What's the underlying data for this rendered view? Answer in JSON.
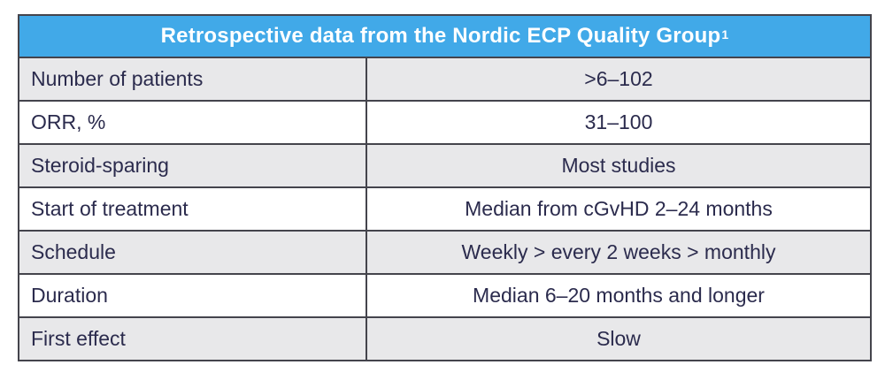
{
  "table": {
    "title": "Retrospective data from the Nordic ECP Quality Group",
    "title_superscript": "1",
    "colors": {
      "header_bg": "#41a9e8",
      "header_text": "#ffffff",
      "row_shaded_bg": "#e8e8ea",
      "row_plain_bg": "#ffffff",
      "border": "#44444c",
      "body_text": "#2b2b4d"
    },
    "rows": [
      {
        "label": "Number of patients",
        "value": ">6–102"
      },
      {
        "label": "ORR, %",
        "value": "31–100"
      },
      {
        "label": "Steroid-sparing",
        "value": "Most studies"
      },
      {
        "label": "Start of treatment",
        "value": "Median from cGvHD 2–24 months"
      },
      {
        "label": "Schedule",
        "value": "Weekly > every 2 weeks > monthly"
      },
      {
        "label": "Duration",
        "value": "Median 6–20 months and longer"
      },
      {
        "label": "First effect",
        "value": "Slow"
      }
    ]
  }
}
